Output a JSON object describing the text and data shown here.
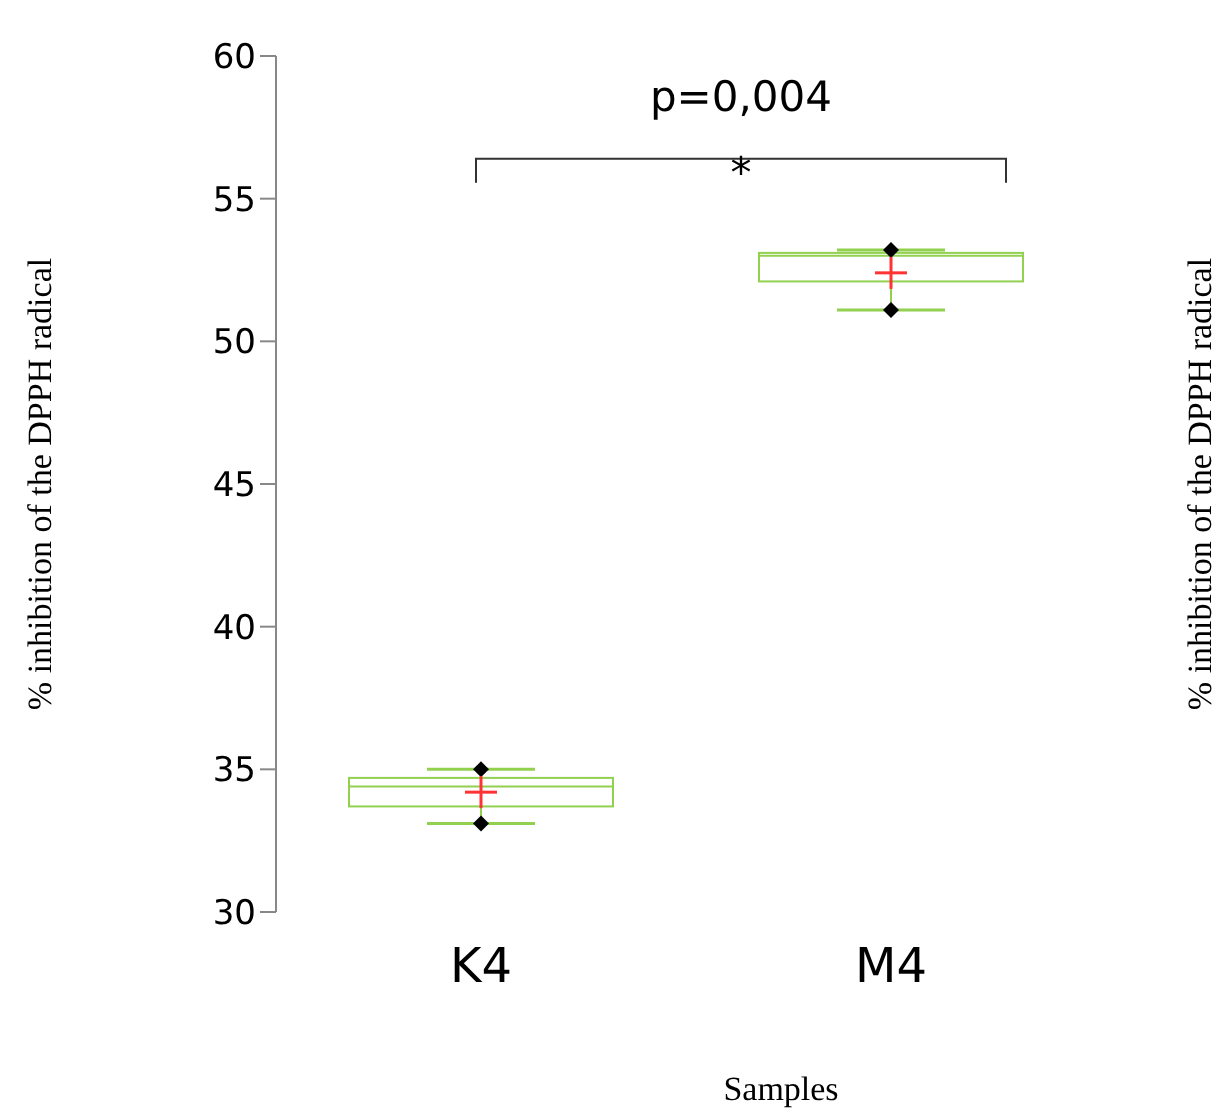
{
  "chart_data": {
    "type": "box",
    "categories": [
      "K4",
      "M4"
    ],
    "boxes": [
      {
        "low": 33.1,
        "q1": 33.7,
        "median": 34.4,
        "q3": 34.7,
        "high": 35.0,
        "mean": 34.2,
        "outliers": [
          33.1,
          35.0
        ]
      },
      {
        "low": 51.1,
        "q1": 52.1,
        "median": 53.0,
        "q3": 53.1,
        "high": 53.2,
        "mean": 52.4,
        "outliers": [
          51.1,
          53.2
        ]
      }
    ],
    "color": "#92d050",
    "ylim": [
      30,
      60
    ],
    "yticks": [
      30,
      35,
      40,
      45,
      50,
      55,
      60
    ],
    "xlabel": "Samples",
    "ylabel": "% inhibition of the DPPH radical",
    "annotations": [
      "p=0,004",
      "*",
      "% inhibition of the DPPH radical"
    ],
    "grid": false,
    "legend": false
  }
}
